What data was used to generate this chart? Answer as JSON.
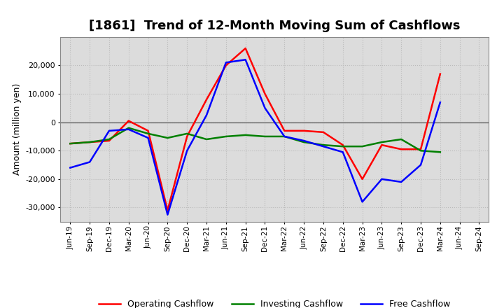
{
  "title": "[1861]  Trend of 12-Month Moving Sum of Cashflows",
  "ylabel": "Amount (million yen)",
  "x_labels": [
    "Jun-19",
    "Sep-19",
    "Dec-19",
    "Mar-20",
    "Jun-20",
    "Sep-20",
    "Dec-20",
    "Mar-21",
    "Jun-21",
    "Sep-21",
    "Dec-21",
    "Mar-22",
    "Jun-22",
    "Sep-22",
    "Dec-22",
    "Mar-23",
    "Jun-23",
    "Sep-23",
    "Dec-23",
    "Mar-24",
    "Jun-24",
    "Sep-24"
  ],
  "operating": [
    -7500,
    -7000,
    -6500,
    500,
    -3000,
    -31000,
    -5000,
    8000,
    20000,
    26000,
    10000,
    -3000,
    -3000,
    -3500,
    -8000,
    -20000,
    -8000,
    -9500,
    -9500,
    17000,
    null,
    null
  ],
  "investing": [
    -7500,
    -7000,
    -6000,
    -2000,
    -4000,
    -5500,
    -4000,
    -6000,
    -5000,
    -4500,
    -5000,
    -5000,
    -7000,
    -8000,
    -8500,
    -8500,
    -7000,
    -6000,
    -10000,
    -10500,
    null,
    null
  ],
  "free": [
    -16000,
    -14000,
    -3000,
    -2500,
    -5500,
    -32500,
    -10000,
    2500,
    21000,
    22000,
    5000,
    -5000,
    -6500,
    -8500,
    -10500,
    -28000,
    -20000,
    -21000,
    -15000,
    7000,
    null,
    null
  ],
  "operating_color": "#FF0000",
  "investing_color": "#008000",
  "free_color": "#0000FF",
  "ylim": [
    -35000,
    30000
  ],
  "yticks": [
    -30000,
    -20000,
    -10000,
    0,
    10000,
    20000
  ],
  "plot_bg_color": "#DCDCDC",
  "fig_bg_color": "#FFFFFF",
  "grid_color": "#BBBBBB",
  "legend_labels": [
    "Operating Cashflow",
    "Investing Cashflow",
    "Free Cashflow"
  ],
  "title_fontsize": 13,
  "ylabel_fontsize": 9,
  "tick_labelsize": 8,
  "x_tick_fontsize": 7.5,
  "linewidth": 1.8
}
